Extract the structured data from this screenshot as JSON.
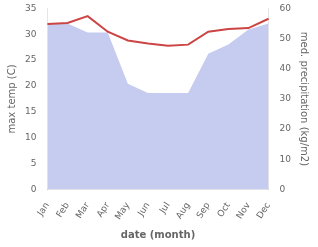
{
  "chart_data": {
    "type": "line",
    "categories": [
      "Jan",
      "Feb",
      "Mar",
      "Apr",
      "May",
      "Jun",
      "Jul",
      "Aug",
      "Sep",
      "Oct",
      "Nov",
      "Dec"
    ],
    "series": [
      {
        "type": "area",
        "axis": "y2",
        "color": "#c5ccf0",
        "values": [
          55,
          55,
          52,
          52,
          35,
          32,
          32,
          32,
          45,
          48,
          53,
          55
        ]
      },
      {
        "type": "line",
        "color": "#cc4444",
        "values": [
          32.0,
          32.2,
          33.5,
          30.5,
          28.8,
          28.2,
          27.8,
          28.0,
          30.5,
          31.0,
          31.2,
          33.0
        ]
      }
    ],
    "xlabel": "date (month)",
    "ylabel": "max temp (C)",
    "y2label": "med. precipitation (kg/m2)",
    "ylim": [
      0,
      35
    ],
    "yticks": [
      0,
      5,
      10,
      15,
      20,
      25,
      30,
      35
    ],
    "y2lim": [
      0,
      60
    ],
    "y2ticks": [
      0,
      10,
      20,
      30,
      40,
      50,
      60
    ],
    "grid": false
  }
}
